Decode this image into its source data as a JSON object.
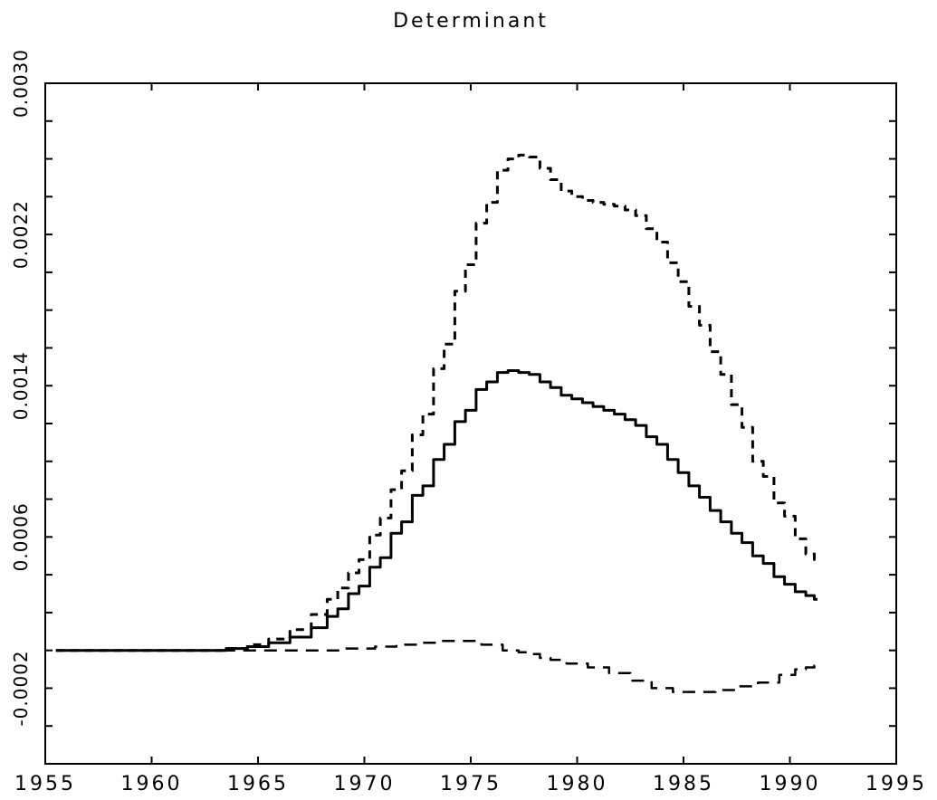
{
  "chart_data": {
    "type": "line",
    "title": "Determinant",
    "xlabel": "",
    "ylabel": "",
    "xlim": [
      1955,
      1995
    ],
    "ylim": [
      -0.0006,
      0.003
    ],
    "x_tick_labels": [
      "1955",
      "1960",
      "1965",
      "1970",
      "1975",
      "1980",
      "1985",
      "1990",
      "1995"
    ],
    "x_tick_values": [
      1955,
      1960,
      1965,
      1970,
      1975,
      1980,
      1985,
      1990,
      1995
    ],
    "y_tick_labels": [
      "-0.0002",
      "0.0006",
      "0.0014",
      "0.0022",
      "0.0030"
    ],
    "y_tick_values": [
      -0.0002,
      0.0006,
      0.0014,
      0.0022,
      0.003
    ],
    "y_minor_step": 0.0002,
    "grid": false,
    "series": [
      {
        "style": "solid",
        "x": [
          1955.5,
          1960,
          1963,
          1964,
          1965,
          1966,
          1967,
          1968,
          1968.5,
          1969,
          1969.5,
          1970,
          1970.5,
          1971,
          1971.5,
          1972,
          1972.5,
          1973,
          1973.5,
          1974,
          1974.5,
          1975,
          1975.5,
          1976,
          1976.5,
          1977,
          1977.5,
          1978,
          1978.5,
          1979,
          1979.5,
          1980,
          1980.5,
          1981,
          1981.5,
          1982,
          1982.5,
          1983,
          1983.5,
          1984,
          1984.5,
          1985,
          1985.5,
          1986,
          1986.5,
          1987,
          1987.5,
          1988,
          1988.5,
          1989,
          1989.5,
          1990,
          1990.5,
          1991,
          1991.3
        ],
        "y": [
          0.0,
          0.0,
          0.0,
          1e-05,
          2e-05,
          4e-05,
          7e-05,
          0.00012,
          0.00018,
          0.00022,
          0.0003,
          0.00034,
          0.00044,
          0.00049,
          0.00062,
          0.00068,
          0.00082,
          0.00087,
          0.00101,
          0.00109,
          0.00121,
          0.00127,
          0.00138,
          0.00142,
          0.00147,
          0.00148,
          0.00147,
          0.00146,
          0.00142,
          0.00139,
          0.00135,
          0.00133,
          0.00131,
          0.00129,
          0.00127,
          0.00125,
          0.00122,
          0.00119,
          0.00113,
          0.00109,
          0.00101,
          0.00094,
          0.00087,
          0.00081,
          0.00074,
          0.00068,
          0.00062,
          0.00057,
          0.0005,
          0.00046,
          0.00039,
          0.00035,
          0.00031,
          0.00029,
          0.00027
        ]
      },
      {
        "style": "dashed-upper",
        "x": [
          1955.5,
          1960,
          1963,
          1964,
          1965,
          1966,
          1967,
          1968,
          1968.5,
          1969,
          1969.5,
          1970,
          1970.5,
          1971,
          1971.5,
          1972,
          1972.5,
          1973,
          1973.5,
          1974,
          1974.5,
          1975,
          1975.5,
          1976,
          1976.5,
          1977,
          1977.5,
          1978,
          1978.5,
          1979,
          1979.5,
          1980,
          1980.5,
          1981,
          1981.5,
          1982,
          1982.5,
          1983,
          1983.5,
          1984,
          1984.5,
          1985,
          1985.5,
          1986,
          1986.5,
          1987,
          1987.5,
          1988,
          1988.5,
          1989,
          1989.5,
          1990,
          1990.5,
          1991,
          1991.3
        ],
        "y": [
          0.0,
          0.0,
          0.0,
          1e-05,
          3e-05,
          6e-05,
          0.00011,
          0.00019,
          0.00027,
          0.00033,
          0.00041,
          0.00048,
          0.00061,
          0.0007,
          0.00085,
          0.00095,
          0.00114,
          0.00125,
          0.00149,
          0.00162,
          0.0019,
          0.00204,
          0.00226,
          0.00237,
          0.00254,
          0.0026,
          0.00262,
          0.00261,
          0.00255,
          0.00249,
          0.00243,
          0.0024,
          0.00238,
          0.00237,
          0.00236,
          0.00235,
          0.00233,
          0.0023,
          0.00223,
          0.00216,
          0.00205,
          0.00195,
          0.00182,
          0.00172,
          0.00158,
          0.00146,
          0.0013,
          0.00118,
          0.001,
          0.00092,
          0.00078,
          0.00071,
          0.00059,
          0.00051,
          0.00048
        ]
      },
      {
        "style": "dashed-lower",
        "x": [
          1955.5,
          1960,
          1965,
          1968,
          1970,
          1971,
          1972,
          1973,
          1974,
          1975,
          1976,
          1977,
          1977.5,
          1978,
          1978.5,
          1979,
          1980,
          1981,
          1982,
          1983,
          1984,
          1985,
          1986,
          1987,
          1988,
          1989,
          1990,
          1990.5,
          1991,
          1991.3
        ],
        "y": [
          0.0,
          0.0,
          0.0,
          0.0,
          1e-05,
          2e-05,
          3e-05,
          4e-05,
          5e-05,
          5e-05,
          3e-05,
          0.0,
          -1e-05,
          -2e-05,
          -4e-05,
          -5e-05,
          -7e-05,
          -9e-05,
          -0.00012,
          -0.00016,
          -0.0002,
          -0.00022,
          -0.00022,
          -0.00021,
          -0.00019,
          -0.00017,
          -0.00013,
          -0.0001,
          -9e-05,
          -8e-05
        ]
      }
    ]
  }
}
